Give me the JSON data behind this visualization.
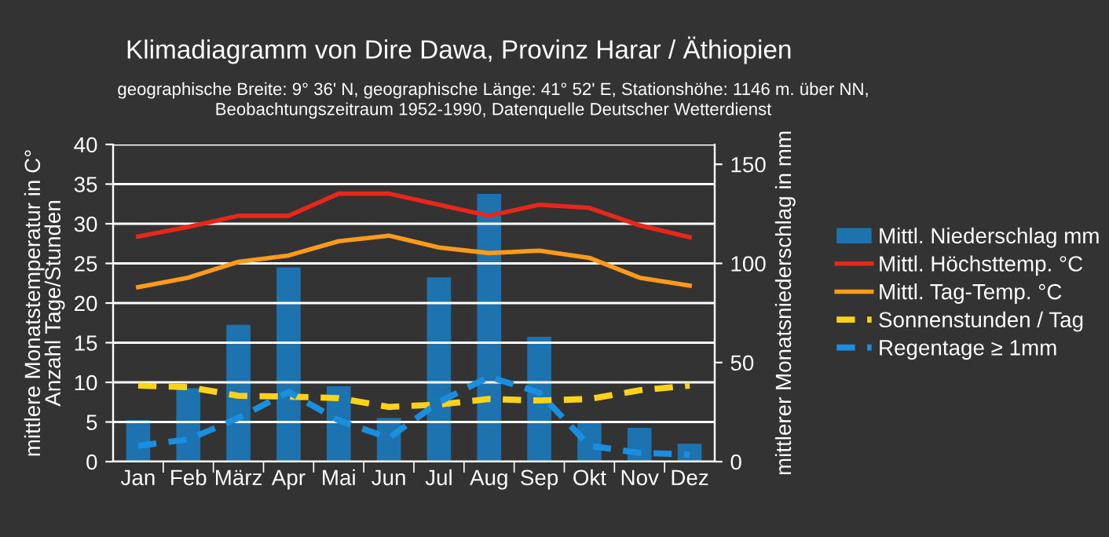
{
  "chart_data": {
    "type": "line",
    "title": "Klimadiagramm von Dire Dawa, Provinz Harar / Äthiopien",
    "subtitle": "geographische Breite: 9° 36' N, geographische Länge: 41° 52' E, Stationshöhe: 1146 m. über NN,\nBeobachtungszeitraum 1952-1990, Datenquelle Deutscher Wetterdienst",
    "ylabel": "mittlere Monatstemperatur in C°\nAnzahl Tage/Stunden",
    "y2label": "mittlerer Monatsniederschlag in mm",
    "categories": [
      "Jan",
      "Feb",
      "März",
      "Apr",
      "Mai",
      "Jun",
      "Jul",
      "Aug",
      "Sep",
      "Okt",
      "Nov",
      "Dez"
    ],
    "series": [
      {
        "name": "Mittl. Niederschlag mm",
        "type": "bar",
        "axis": "y2",
        "color": "#1a7fc6",
        "values": [
          21,
          37,
          69,
          98,
          38,
          22,
          93,
          135,
          63,
          20,
          17,
          9
        ]
      },
      {
        "name": "Mittl. Höchsttemp. °C",
        "color": "#e8261a",
        "line_style": "solid",
        "values": [
          28.4,
          29.6,
          31,
          31,
          33.8,
          33.8,
          32.4,
          31,
          32.4,
          32,
          29.8,
          28.3
        ]
      },
      {
        "name": "Mittl. Tag-Temp. °C",
        "color": "#ff9a1a",
        "line_style": "solid",
        "values": [
          22,
          23.2,
          25.2,
          26,
          27.8,
          28.5,
          27,
          26.3,
          26.6,
          25.7,
          23.2,
          22.2
        ]
      },
      {
        "name": "Sonnenstunden / Tag",
        "color": "#ffd21a",
        "line_style": "dashed",
        "values": [
          9.6,
          9.4,
          8.3,
          8.2,
          8,
          6.9,
          7.2,
          7.9,
          7.7,
          7.9,
          9,
          9.6
        ]
      },
      {
        "name": "Regentage ≥ 1mm",
        "color": "#1a8fe0",
        "line_style": "dashed",
        "values": [
          2,
          2.8,
          5.5,
          8.8,
          5.2,
          3,
          7.5,
          10.7,
          8.7,
          2,
          1.1,
          0.9
        ]
      }
    ],
    "ylim": [
      0,
      40
    ],
    "yticks": [
      0,
      5,
      10,
      15,
      20,
      25,
      30,
      35,
      40
    ],
    "y2lim": [
      0,
      160
    ],
    "y2ticks": [
      0,
      50,
      100,
      150
    ],
    "grid": "y",
    "legend": "right"
  }
}
